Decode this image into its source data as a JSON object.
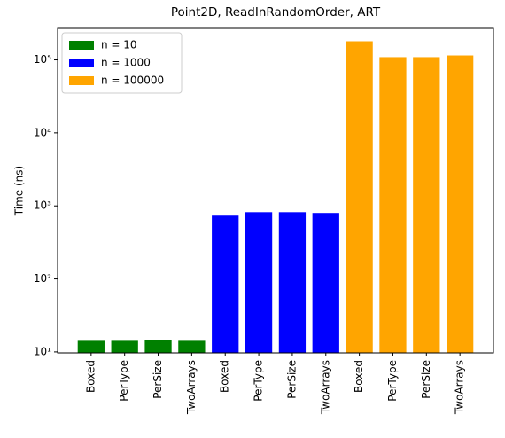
{
  "chart_data": {
    "type": "bar",
    "title": "Point2D, ReadInRandomOrder, ART",
    "y_label": "Time (ns)",
    "categories": [
      "Boxed",
      "PerType",
      "PerSize",
      "TwoArrays",
      "Boxed",
      "PerType",
      "PerSize",
      "TwoArrays",
      "Boxed",
      "PerType",
      "PerSize",
      "TwoArrays"
    ],
    "series": [
      {
        "name": "n = 10",
        "color": "#008000",
        "values": [
          14.2,
          14.2,
          14.6,
          14.2,
          null,
          null,
          null,
          null,
          null,
          null,
          null,
          null
        ]
      },
      {
        "name": "n = 1000",
        "color": "#0000ff",
        "values": [
          null,
          null,
          null,
          null,
          735,
          820,
          820,
          800,
          null,
          null,
          null,
          null
        ]
      },
      {
        "name": "n = 100000",
        "color": "#ffa500",
        "values": [
          null,
          null,
          null,
          null,
          null,
          null,
          null,
          null,
          180000,
          109000,
          109000,
          115000
        ]
      }
    ],
    "log_scale": true,
    "legend": "upper left",
    "ylim": [
      9.7,
      270000
    ],
    "yticks": [
      {
        "value": 10,
        "label": "10¹"
      },
      {
        "value": 100,
        "label": "10²"
      },
      {
        "value": 1000,
        "label": "10³"
      },
      {
        "value": 10000,
        "label": "10⁴"
      },
      {
        "value": 100000,
        "label": "10⁵"
      }
    ]
  }
}
